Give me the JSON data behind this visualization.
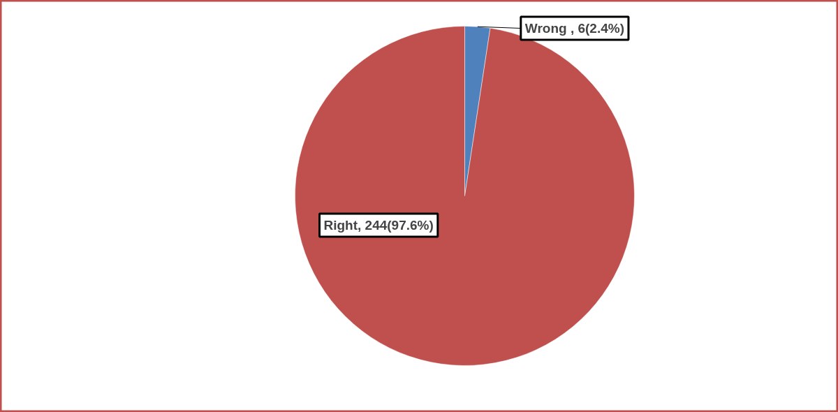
{
  "chart_data": {
    "type": "pie",
    "categories": [
      "Wrong",
      "Right"
    ],
    "values": [
      6,
      244
    ],
    "colors": [
      "#4f81bd",
      "#c0504d"
    ],
    "value_labels": [
      " , 6(2.4%)",
      ", 244(97.6%)"
    ]
  }
}
